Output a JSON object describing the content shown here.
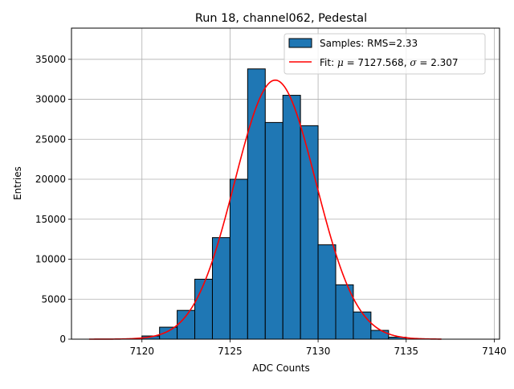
{
  "chart_data": {
    "type": "bar",
    "title": "Run 18, channel062, Pedestal",
    "xlabel": "ADC Counts",
    "ylabel": "Entries",
    "xlim": [
      7116,
      7140.3
    ],
    "ylim": [
      0,
      38900
    ],
    "xticks": [
      7120,
      7125,
      7130,
      7135,
      7140
    ],
    "yticks": [
      0,
      5000,
      10000,
      15000,
      20000,
      25000,
      30000,
      35000
    ],
    "grid": true,
    "legend_position": "top-right",
    "bin_width": 1,
    "bin_edges_start": [
      7120,
      7121,
      7122,
      7123,
      7124,
      7125,
      7126,
      7127,
      7128,
      7129,
      7130,
      7131,
      7132,
      7133,
      7134
    ],
    "bin_values": [
      400,
      1500,
      3600,
      7500,
      12700,
      20000,
      33800,
      27100,
      30500,
      26700,
      11800,
      6800,
      3400,
      1100,
      250
    ],
    "fit": {
      "mu": 7127.568,
      "sigma": 2.307,
      "amplitude": 32400,
      "x_range": [
        7117,
        7137
      ]
    },
    "series": [
      {
        "name": "Samples: RMS=2.33",
        "kind": "histogram",
        "color": "#1f77b4",
        "edge_color": "#000000"
      },
      {
        "name_prefix": "Fit: ",
        "name_math_1": "μ",
        "name_mid": " = 7127.568, ",
        "name_math_2": "σ",
        "name_suffix": " = 2.307",
        "kind": "line",
        "color": "#ff0000"
      }
    ]
  }
}
